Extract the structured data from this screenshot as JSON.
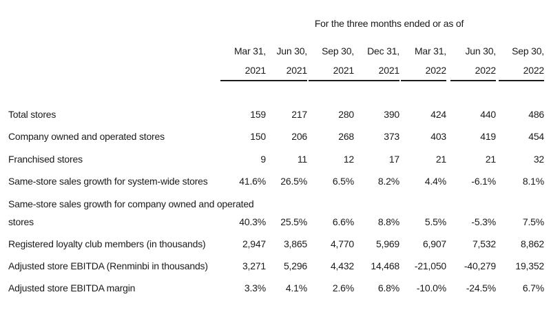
{
  "period_header": "For the three months ended or as of",
  "columns": [
    [
      "Mar 31,",
      "2021"
    ],
    [
      "Jun 30,",
      "2021"
    ],
    [
      "Sep 30,",
      "2021"
    ],
    [
      "Dec 31,",
      "2021"
    ],
    [
      "Mar 31,",
      "2022"
    ],
    [
      "Jun 30,",
      "2022"
    ],
    [
      "Sep 30,",
      "2022"
    ]
  ],
  "rows": [
    {
      "label": "Total stores",
      "values": [
        "159",
        "217",
        "280",
        "390",
        "424",
        "440",
        "486"
      ]
    },
    {
      "label": "Company owned and operated stores",
      "values": [
        "150",
        "206",
        "268",
        "373",
        "403",
        "419",
        "454"
      ]
    },
    {
      "label": "Franchised stores",
      "values": [
        "9",
        "11",
        "12",
        "17",
        "21",
        "21",
        "32"
      ]
    },
    {
      "label": "Same-store sales growth for system-wide stores",
      "values": [
        "41.6%",
        "26.5%",
        "6.5%",
        "8.2%",
        "4.4%",
        "-6.1%",
        "8.1%"
      ]
    },
    {
      "label": [
        "Same-store sales growth for company owned and operated",
        "stores"
      ],
      "values": [
        "40.3%",
        "25.5%",
        "6.6%",
        "8.8%",
        "5.5%",
        "-5.3%",
        "7.5%"
      ]
    },
    {
      "label": "Registered loyalty club members (in thousands)",
      "values": [
        "2,947",
        "3,865",
        "4,770",
        "5,969",
        "6,907",
        "7,532",
        "8,862"
      ]
    },
    {
      "label": "Adjusted store EBITDA (Renminbi in thousands)",
      "values": [
        "3,271",
        "5,296",
        "4,432",
        "14,468",
        "-21,050",
        "-40,279",
        "19,352"
      ]
    },
    {
      "label": "Adjusted store EBITDA margin",
      "values": [
        "3.3%",
        "4.1%",
        "2.6%",
        "6.8%",
        "-10.0%",
        "-24.5%",
        "6.7%"
      ]
    }
  ]
}
